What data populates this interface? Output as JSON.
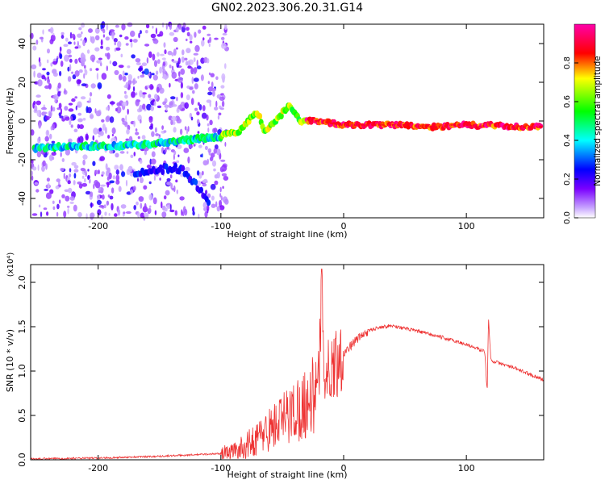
{
  "chart_data": [
    {
      "type": "heatmap",
      "title": "GN02.2023.306.20.31.G14",
      "xlabel": "Height of straight line (km)",
      "ylabel": "Frequency (Hz)",
      "xlim": [
        -255,
        163
      ],
      "ylim": [
        -50,
        50
      ],
      "x_ticks": [
        -200,
        -100,
        0,
        100
      ],
      "y_ticks": [
        -40,
        -20,
        0,
        20,
        40
      ],
      "colorbar": {
        "label": "Normalized spectral amplitude",
        "range": [
          0,
          1
        ],
        "ticks": [
          "0.0",
          "0.2",
          "0.4",
          "0.6",
          "0.8"
        ],
        "colors": [
          "#ffffff",
          "#7a00ff",
          "#0000ff",
          "#00ffff",
          "#00ff00",
          "#ff0000",
          "#ff00aa"
        ]
      },
      "ridge": {
        "x": [
          -250,
          -220,
          -190,
          -160,
          -130,
          -100,
          -85,
          -70,
          -65,
          -55,
          -45,
          -35,
          -20,
          -10,
          0,
          20,
          50,
          70,
          80,
          90,
          105,
          110,
          120,
          140,
          163
        ],
        "y": [
          -14,
          -13,
          -13,
          -12,
          -10,
          -8,
          -5,
          5,
          -5,
          0,
          8,
          0,
          0,
          -1,
          -2,
          -2,
          -2,
          -3,
          -3,
          -2,
          -2,
          -3,
          -2,
          -3,
          -3
        ]
      },
      "secondary_ridge": {
        "x": [
          -170,
          -160,
          -150,
          -140,
          -130,
          -120,
          -110
        ],
        "y": [
          -27,
          -26,
          -25,
          -24,
          -26,
          -33,
          -42
        ]
      },
      "grid": false
    },
    {
      "type": "line",
      "xlabel": "Height of straight line (km)",
      "ylabel": "SNR (10 * v/v)",
      "y_multiplier": "(x10⁴)",
      "xlim": [
        -255,
        163
      ],
      "ylim": [
        0,
        2.2
      ],
      "x_ticks": [
        -200,
        -100,
        0,
        100
      ],
      "y_ticks": [
        "0.0",
        "0.5",
        "1.0",
        "1.5",
        "2.0"
      ],
      "series": [
        {
          "color": "#ee3333",
          "x": [
            -255,
            -200,
            -150,
            -100,
            -90,
            -80,
            -70,
            -60,
            -50,
            -40,
            -30,
            -20,
            -18,
            -15,
            -10,
            0,
            10,
            20,
            30,
            40,
            50,
            60,
            80,
            100,
            115,
            117,
            118,
            120,
            140,
            163
          ],
          "y": [
            0.01,
            0.02,
            0.04,
            0.07,
            0.1,
            0.15,
            0.25,
            0.35,
            0.45,
            0.55,
            0.65,
            0.8,
            2.15,
            0.9,
            1.05,
            1.2,
            1.35,
            1.45,
            1.5,
            1.51,
            1.48,
            1.45,
            1.38,
            1.3,
            1.22,
            0.75,
            1.6,
            1.12,
            1.03,
            0.9
          ]
        }
      ],
      "grid": false
    }
  ]
}
